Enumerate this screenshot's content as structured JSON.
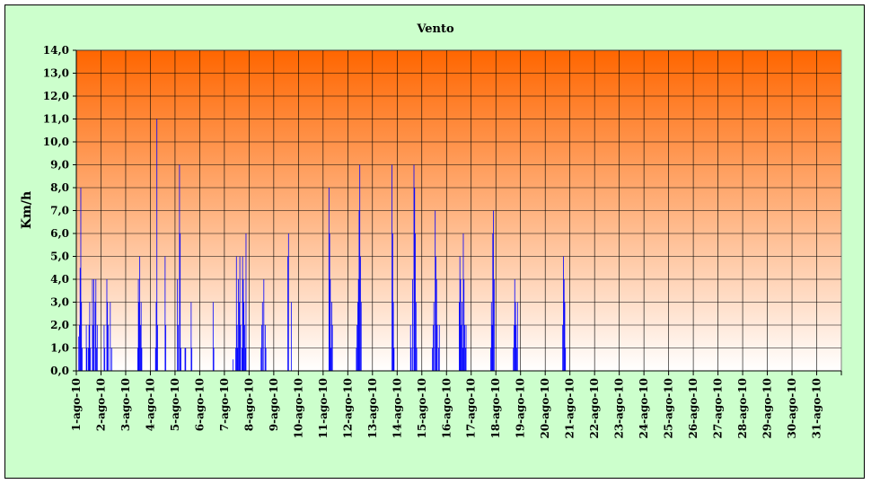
{
  "chart_data": {
    "type": "bar",
    "title": "Vento",
    "xlabel": "",
    "ylabel": "Km/h",
    "ylim": [
      0,
      14
    ],
    "y_ticks": [
      "0,0",
      "1,0",
      "2,0",
      "3,0",
      "4,0",
      "5,0",
      "6,0",
      "7,0",
      "8,0",
      "9,0",
      "10,0",
      "11,0",
      "12,0",
      "13,0",
      "14,0"
    ],
    "categories": [
      "1-ago-10",
      "2-ago-10",
      "3-ago-10",
      "4-ago-10",
      "5-ago-10",
      "6-ago-10",
      "7-ago-10",
      "8-ago-10",
      "9-ago-10",
      "10-ago-10",
      "11-ago-10",
      "12-ago-10",
      "13-ago-10",
      "14-ago-10",
      "15-ago-10",
      "16-ago-10",
      "17-ago-10",
      "18-ago-10",
      "19-ago-10",
      "20-ago-10",
      "21-ago-10",
      "22-ago-10",
      "23-ago-10",
      "24-ago-10",
      "25-ago-10",
      "26-ago-10",
      "27-ago-10",
      "28-ago-10",
      "29-ago-10",
      "30-ago-10",
      "31-ago-10"
    ],
    "grid": true,
    "legend": "none",
    "colors": {
      "bars": "#0000ff",
      "plot_top": "#ff6600",
      "plot_bottom": "#ffffff",
      "background": "#ccffcc"
    },
    "series": [
      {
        "values": [
          [
            0,
            0,
            0,
            1.5,
            2,
            4.5,
            8,
            3,
            1,
            0,
            0,
            0,
            0,
            0,
            2,
            1,
            0,
            1,
            2,
            3,
            1,
            0,
            0,
            4,
            2,
            4,
            0,
            3,
            4,
            1,
            2,
            0,
            0,
            0,
            0,
            0
          ],
          [
            0,
            0,
            0,
            0,
            2,
            1,
            0,
            0,
            4,
            3,
            2,
            0,
            0,
            3,
            0,
            1,
            0,
            0,
            0,
            0,
            0,
            0,
            0,
            0,
            0,
            0,
            0,
            0,
            0,
            0,
            0,
            0,
            0,
            0,
            0,
            0
          ],
          [
            0,
            0,
            0,
            0,
            0,
            0,
            0,
            0,
            0,
            0,
            0,
            0,
            0,
            0,
            0,
            0,
            0,
            1,
            4,
            3,
            5,
            2,
            3,
            1,
            0,
            0,
            0,
            0,
            0,
            0,
            0,
            0,
            0,
            0,
            0,
            0
          ],
          [
            0,
            0,
            0,
            0,
            0,
            0,
            0,
            1,
            3,
            11,
            2,
            0,
            0,
            0,
            0,
            0,
            0,
            0,
            0,
            0,
            0,
            5,
            2,
            0,
            0,
            0,
            0,
            0,
            0,
            0,
            0,
            0,
            0,
            0,
            0,
            0
          ],
          [
            0,
            0,
            0,
            4,
            2,
            0,
            9,
            6,
            1,
            0,
            0,
            0,
            0,
            0,
            1,
            1,
            0,
            0,
            0,
            0,
            0,
            0,
            0,
            3,
            1,
            0,
            0,
            0,
            0,
            0,
            0,
            0,
            0,
            0,
            0,
            0
          ],
          [
            0,
            0,
            0,
            0,
            0,
            0,
            0,
            0,
            0,
            0,
            0,
            0,
            0,
            0,
            0,
            0,
            0,
            0,
            0,
            3,
            1,
            0,
            0,
            0,
            0,
            0,
            0,
            0,
            0,
            0,
            0,
            0,
            0,
            0,
            0,
            0
          ],
          [
            0,
            0,
            0,
            0,
            0,
            0,
            0,
            0,
            0,
            0,
            0,
            0,
            0.5,
            0,
            0,
            0,
            1,
            5,
            2,
            1,
            4,
            3,
            5,
            2,
            0,
            1,
            5,
            4,
            3,
            2,
            1,
            6,
            0,
            0,
            0,
            0
          ],
          [
            0,
            0,
            0,
            0,
            0,
            0,
            0,
            0,
            0,
            0,
            0,
            0,
            0,
            0,
            0,
            0,
            0,
            1,
            2,
            3,
            0,
            4,
            0,
            2,
            1,
            0,
            0,
            0,
            0,
            0,
            0,
            0,
            0,
            0,
            0,
            0
          ],
          [
            0,
            0,
            0,
            0,
            0,
            0,
            0,
            0,
            0,
            0,
            0,
            0,
            0,
            0,
            0,
            0,
            0,
            0,
            0,
            0,
            5,
            6,
            0,
            0,
            0,
            3,
            0,
            0,
            0,
            0,
            0,
            0,
            0,
            0,
            0,
            0
          ],
          [
            0,
            0,
            0,
            0,
            0,
            0,
            0,
            0,
            0,
            0,
            0,
            0,
            0,
            0,
            0,
            0,
            0,
            0,
            0,
            0,
            0,
            0,
            0,
            0,
            0,
            0,
            0,
            0,
            0,
            0,
            0,
            0,
            0,
            0,
            0,
            0
          ],
          [
            0,
            0,
            0,
            0,
            0,
            0,
            0,
            0,
            8,
            6,
            4,
            1,
            3,
            2,
            0,
            0,
            0,
            0,
            0,
            0,
            0,
            0,
            0,
            0,
            0,
            0,
            0,
            0,
            0,
            0,
            0,
            0,
            0,
            0,
            0,
            0
          ],
          [
            0,
            0,
            0,
            0,
            0,
            0,
            0,
            0,
            0,
            0,
            0,
            0,
            1,
            2,
            3,
            4,
            7,
            9,
            5,
            3,
            0,
            0,
            0,
            0,
            0,
            0,
            0,
            0,
            0,
            0,
            0,
            0,
            0,
            0,
            0,
            0
          ],
          [
            0,
            0,
            0,
            0,
            0,
            0,
            0,
            0,
            0,
            0,
            0,
            0,
            0,
            0,
            0,
            0,
            0,
            0,
            0,
            0,
            0,
            0,
            0,
            0,
            0,
            0,
            0,
            0,
            9,
            6,
            3,
            1,
            0,
            0,
            0,
            0
          ],
          [
            0,
            0,
            0,
            0,
            0,
            0,
            0,
            0,
            0,
            0,
            0,
            0,
            0,
            0,
            0,
            0,
            0,
            0,
            0,
            2,
            1,
            0,
            4,
            0,
            9,
            8,
            6,
            3,
            1,
            0,
            0,
            0,
            0,
            0,
            0,
            0
          ],
          [
            0,
            0,
            0,
            0,
            0,
            0,
            0,
            0,
            0,
            0,
            0,
            0,
            0,
            0,
            0,
            1,
            2,
            3,
            0,
            7,
            5,
            4,
            2,
            0,
            1,
            2,
            0,
            0,
            0,
            0,
            0,
            0,
            0,
            0,
            0,
            0
          ],
          [
            0,
            0,
            0,
            0,
            0,
            0,
            0,
            0,
            0,
            0,
            0,
            0,
            0,
            0,
            0,
            0,
            0,
            0,
            3,
            5,
            4,
            2,
            3,
            1,
            6,
            4,
            2,
            1,
            2,
            0,
            0,
            0,
            0,
            0,
            0,
            0
          ],
          [
            0,
            0,
            0,
            0,
            0,
            0,
            0,
            0,
            0,
            0,
            0,
            0,
            0,
            0,
            0,
            0,
            0,
            0,
            0,
            0,
            0,
            0,
            0,
            0,
            0,
            0,
            0,
            0,
            1,
            3,
            2,
            6,
            7,
            4,
            0,
            0
          ],
          [
            0,
            0,
            0,
            0,
            0,
            0,
            0,
            0,
            0,
            0,
            0,
            0,
            0,
            0,
            0,
            0,
            0,
            0,
            0,
            0,
            0,
            0,
            0,
            0,
            0,
            1,
            2,
            4,
            3,
            2,
            1,
            3,
            0,
            0,
            0,
            0
          ],
          [
            0,
            0,
            0,
            0,
            0,
            0,
            0,
            0,
            0,
            0,
            0,
            0,
            0,
            0,
            0,
            0,
            0,
            0,
            0,
            0,
            0,
            0,
            0,
            0,
            0,
            0,
            0,
            0,
            0,
            0,
            0,
            0,
            0,
            0,
            0,
            0
          ],
          [
            0,
            0,
            0,
            0,
            0,
            0,
            0,
            0,
            0,
            0,
            0,
            0,
            0,
            0,
            0,
            0,
            0,
            0,
            0,
            0,
            0,
            0,
            0,
            0,
            0,
            2,
            5,
            4,
            3,
            1,
            0,
            0,
            0,
            0,
            0,
            0
          ],
          [
            0,
            0,
            0,
            0,
            0,
            0,
            0,
            0,
            0,
            0,
            0,
            0,
            0,
            0,
            0,
            0,
            0,
            0,
            0,
            0,
            0,
            0,
            0,
            0,
            0,
            0,
            0,
            0,
            0,
            0,
            0,
            0,
            0,
            0,
            0,
            0
          ],
          [
            0,
            0,
            0,
            0,
            0,
            0,
            0,
            0,
            0,
            0,
            0,
            0,
            0,
            0,
            0,
            0,
            0,
            0,
            0,
            0,
            0,
            0,
            0,
            0,
            0,
            0,
            0,
            0,
            0,
            0,
            0,
            0,
            0,
            0,
            0,
            0
          ],
          [
            0,
            0,
            0,
            0,
            0,
            0,
            0,
            0,
            0,
            0,
            0,
            0,
            0,
            0,
            0,
            0,
            0,
            0,
            0,
            0,
            0,
            0,
            0,
            0,
            0,
            0,
            0,
            0,
            0,
            0,
            0,
            0,
            0,
            0,
            0,
            0
          ],
          [
            0,
            0,
            0,
            0,
            0,
            0,
            0,
            0,
            0,
            0,
            0,
            0,
            0,
            0,
            0,
            0,
            0,
            0,
            0,
            0,
            0,
            0,
            0,
            0,
            0,
            0,
            0,
            0,
            0,
            0,
            0,
            0,
            0,
            0,
            0,
            0
          ],
          [
            0,
            0,
            0,
            0,
            0,
            0,
            0,
            0,
            0,
            0,
            0,
            0,
            0,
            0,
            0,
            0,
            0,
            0,
            0,
            0,
            0,
            0,
            0,
            0,
            0,
            0,
            0,
            0,
            0,
            0,
            0,
            0,
            0,
            0,
            0,
            0
          ],
          [
            0,
            0,
            0,
            0,
            0,
            0,
            0,
            0,
            0,
            0,
            0,
            0,
            0,
            0,
            0,
            0,
            0,
            0,
            0,
            0,
            0,
            0,
            0,
            0,
            0,
            0,
            0,
            0,
            0,
            0,
            0,
            0,
            0,
            0,
            0,
            0
          ],
          [
            0,
            0,
            0,
            0,
            0,
            0,
            0,
            0,
            0,
            0,
            0,
            0,
            0,
            0,
            0,
            0,
            0,
            0,
            0,
            0,
            0,
            0,
            0,
            0,
            0,
            0,
            0,
            0,
            0,
            0,
            0,
            0,
            0,
            0,
            0,
            0
          ],
          [
            0,
            0,
            0,
            0,
            0,
            0,
            0,
            0,
            0,
            0,
            0,
            0,
            0,
            0,
            0,
            0,
            0,
            0,
            0,
            0,
            0,
            0,
            0,
            0,
            0,
            0,
            0,
            0,
            0,
            0,
            0,
            0,
            0,
            0,
            0,
            0
          ],
          [
            0,
            0,
            0,
            0,
            0,
            0,
            0,
            0,
            0,
            0,
            0,
            0,
            0,
            0,
            0,
            0,
            0,
            0,
            0,
            0,
            0,
            0,
            0,
            0,
            0,
            0,
            0,
            0,
            0,
            0,
            0,
            0,
            0,
            0,
            0,
            0
          ],
          [
            0,
            0,
            0,
            0,
            0,
            0,
            0,
            0,
            0,
            0,
            0,
            0,
            0,
            0,
            0,
            0,
            0,
            0,
            0,
            0,
            0,
            0,
            0,
            0,
            0,
            0,
            0,
            0,
            0,
            0,
            0,
            0,
            0,
            0,
            0,
            0
          ],
          [
            0,
            0,
            0,
            0,
            0,
            0,
            0,
            0,
            0,
            0,
            0,
            0,
            0,
            0,
            0,
            0,
            0,
            0,
            0,
            0,
            0,
            0,
            0,
            0,
            0,
            0,
            0,
            0,
            0,
            0,
            0,
            0,
            0,
            0,
            0,
            0
          ]
        ]
      }
    ]
  }
}
